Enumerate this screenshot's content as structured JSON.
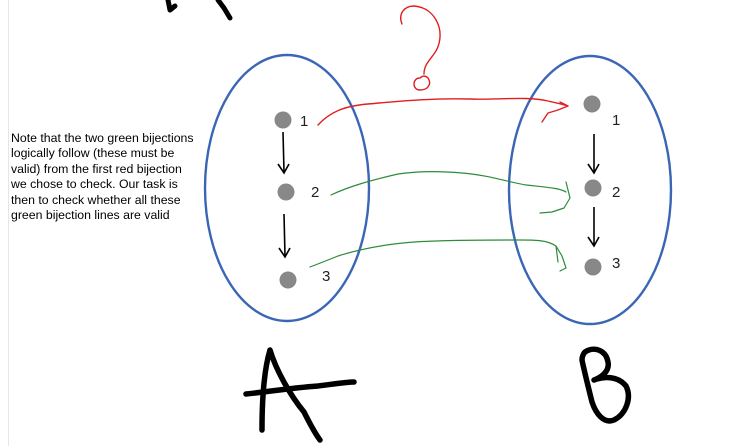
{
  "note": "Note that the two green bijections logically follow (these must be valid) from the first red bijection we chose to check. Our task is then to check whether all these green bijection lines are valid",
  "set_a": {
    "label": "A",
    "elements": [
      "1",
      "2",
      "3"
    ]
  },
  "set_b": {
    "label": "B",
    "elements": [
      "1",
      "2",
      "3"
    ]
  },
  "question_mark": "?",
  "colors": {
    "ellipse": "#3a66b5",
    "point": "#888888",
    "red_line": "#e02020",
    "green_line": "#2e8b3a",
    "ink": "#000000"
  }
}
